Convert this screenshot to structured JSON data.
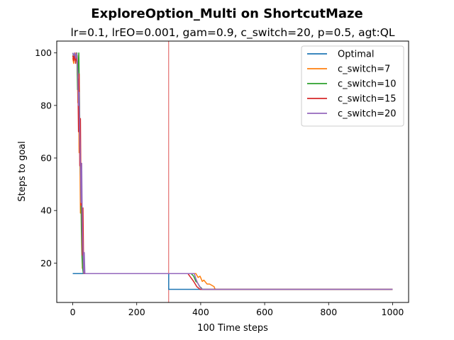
{
  "chart_data": {
    "type": "line",
    "title": "ExploreOption_Multi on ShortcutMaze",
    "subtitle": "lr=0.1, lrEO=0.001, gam=0.9, c_switch=20, p=0.5, agt:QL",
    "xlabel": "100 Time steps",
    "ylabel": "Steps to goal",
    "xlim": [
      -50,
      1050
    ],
    "ylim": [
      5,
      104.5
    ],
    "xticks": [
      0,
      200,
      400,
      600,
      800,
      1000
    ],
    "yticks": [
      20,
      40,
      60,
      80,
      100
    ],
    "legend_position": "top-right",
    "grid": false,
    "vline": {
      "x": 300,
      "color": "#d62728"
    },
    "series": [
      {
        "name": "Optimal",
        "color": "#1f77b4",
        "points": [
          [
            0,
            16
          ],
          [
            300,
            16
          ],
          [
            300,
            10
          ],
          [
            1000,
            10
          ]
        ]
      },
      {
        "name": "c_switch=7",
        "color": "#ff7f0e",
        "points": [
          [
            0,
            98
          ],
          [
            3,
            96
          ],
          [
            5,
            99
          ],
          [
            8,
            97
          ],
          [
            10,
            100
          ],
          [
            12,
            98
          ],
          [
            14,
            99
          ],
          [
            16,
            81
          ],
          [
            18,
            90
          ],
          [
            20,
            62
          ],
          [
            22,
            68
          ],
          [
            24,
            39
          ],
          [
            26,
            48
          ],
          [
            28,
            42
          ],
          [
            30,
            18
          ],
          [
            32,
            24
          ],
          [
            34,
            17
          ],
          [
            36,
            16
          ],
          [
            300,
            16
          ],
          [
            385,
            16
          ],
          [
            392,
            14.5
          ],
          [
            398,
            15
          ],
          [
            405,
            13
          ],
          [
            410,
            13.5
          ],
          [
            420,
            12
          ],
          [
            428,
            12
          ],
          [
            435,
            11.5
          ],
          [
            442,
            11
          ],
          [
            445,
            10
          ],
          [
            1000,
            10
          ]
        ]
      },
      {
        "name": "c_switch=10",
        "color": "#2ca02c",
        "points": [
          [
            0,
            100
          ],
          [
            4,
            98
          ],
          [
            7,
            99
          ],
          [
            10,
            97
          ],
          [
            13,
            100
          ],
          [
            15,
            86
          ],
          [
            17,
            95
          ],
          [
            19,
            100
          ],
          [
            21,
            83
          ],
          [
            23,
            62
          ],
          [
            25,
            52
          ],
          [
            27,
            33
          ],
          [
            29,
            22
          ],
          [
            31,
            18
          ],
          [
            33,
            16
          ],
          [
            300,
            16
          ],
          [
            370,
            16
          ],
          [
            378,
            15
          ],
          [
            385,
            13
          ],
          [
            390,
            12.5
          ],
          [
            397,
            11
          ],
          [
            402,
            10.5
          ],
          [
            405,
            10
          ],
          [
            1000,
            10
          ]
        ]
      },
      {
        "name": "c_switch=15",
        "color": "#d62728",
        "points": [
          [
            0,
            99
          ],
          [
            3,
            97
          ],
          [
            6,
            100
          ],
          [
            9,
            96
          ],
          [
            12,
            99
          ],
          [
            14,
            97
          ],
          [
            16,
            91
          ],
          [
            18,
            70
          ],
          [
            20,
            92
          ],
          [
            22,
            57
          ],
          [
            24,
            75
          ],
          [
            26,
            42
          ],
          [
            28,
            48
          ],
          [
            30,
            23
          ],
          [
            32,
            41
          ],
          [
            34,
            19
          ],
          [
            36,
            16
          ],
          [
            300,
            16
          ],
          [
            360,
            16
          ],
          [
            366,
            15
          ],
          [
            372,
            14
          ],
          [
            378,
            13
          ],
          [
            383,
            12
          ],
          [
            388,
            11
          ],
          [
            393,
            10.5
          ],
          [
            398,
            10
          ],
          [
            1000,
            10
          ]
        ]
      },
      {
        "name": "c_switch=20",
        "color": "#9467bd",
        "points": [
          [
            0,
            100
          ],
          [
            3,
            99
          ],
          [
            6,
            100
          ],
          [
            9,
            98
          ],
          [
            12,
            100
          ],
          [
            14,
            97
          ],
          [
            16,
            92
          ],
          [
            18,
            80
          ],
          [
            20,
            85
          ],
          [
            22,
            68
          ],
          [
            24,
            58
          ],
          [
            26,
            43
          ],
          [
            28,
            58
          ],
          [
            30,
            33
          ],
          [
            32,
            25
          ],
          [
            34,
            16
          ],
          [
            36,
            24
          ],
          [
            38,
            16
          ],
          [
            300,
            16
          ],
          [
            380,
            16
          ],
          [
            385,
            14
          ],
          [
            390,
            12.5
          ],
          [
            395,
            11.5
          ],
          [
            400,
            10.5
          ],
          [
            405,
            10
          ],
          [
            1000,
            10
          ]
        ]
      }
    ]
  }
}
